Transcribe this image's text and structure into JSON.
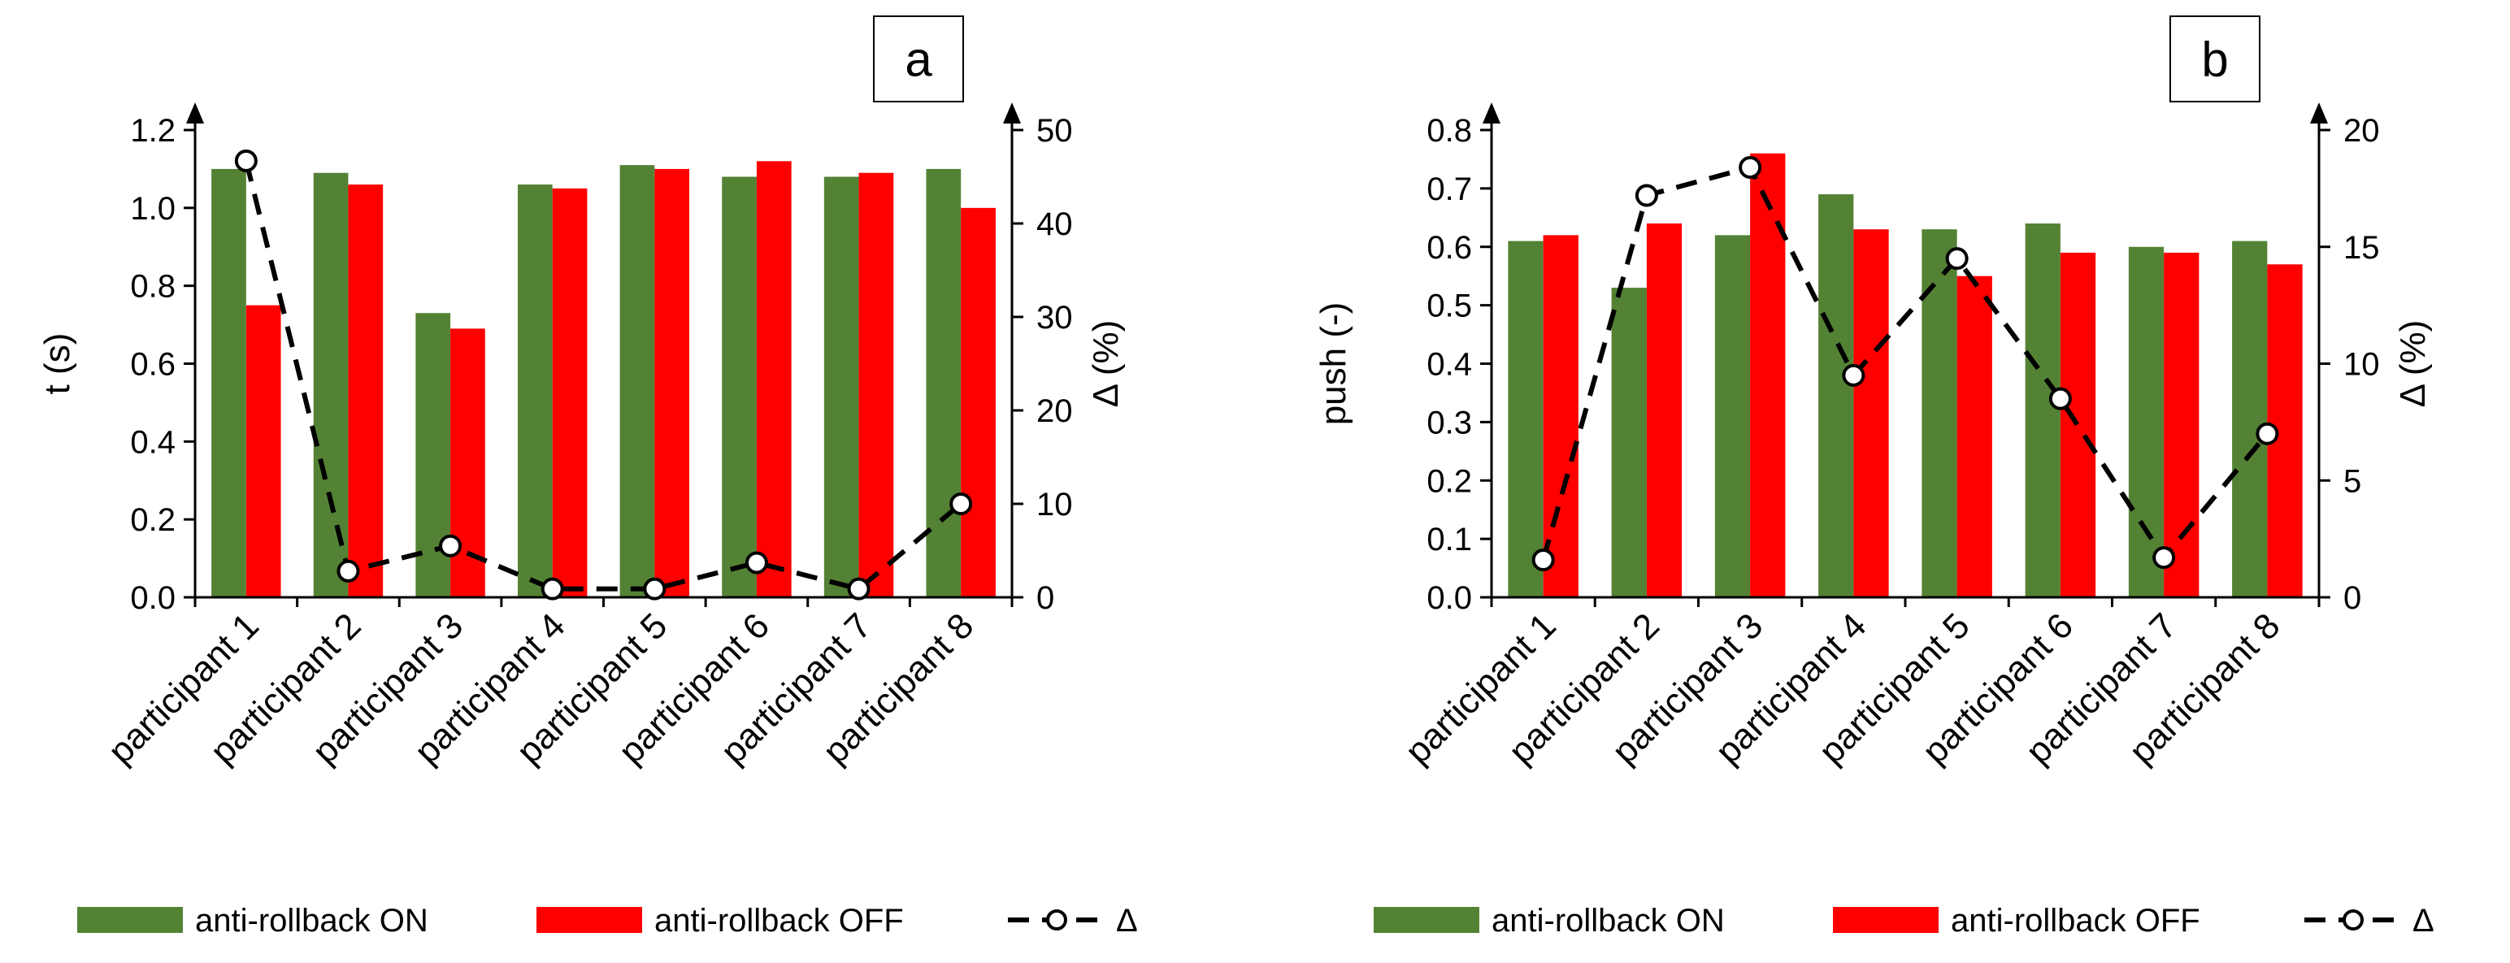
{
  "colors": {
    "on": "#548235",
    "off": "#ff0000",
    "delta": "#000000"
  },
  "chart_data": [
    {
      "type": "bar",
      "panel_label": "a",
      "categories": [
        "participant 1",
        "participant 2",
        "participant 3",
        "participant 4",
        "participant 5",
        "participant 6",
        "participant 7",
        "participant 8"
      ],
      "series": [
        {
          "name": "anti-rollback ON",
          "values": [
            1.1,
            1.09,
            0.73,
            1.06,
            1.11,
            1.08,
            1.08,
            1.1
          ]
        },
        {
          "name": "anti-rollback OFF",
          "values": [
            0.75,
            1.06,
            0.69,
            1.05,
            1.1,
            1.12,
            1.09,
            1.0
          ]
        }
      ],
      "line_series": {
        "name": "Δ",
        "axis": "right",
        "values": [
          46.7,
          2.8,
          5.5,
          0.9,
          0.9,
          3.7,
          0.9,
          10.0
        ]
      },
      "xlabel": "",
      "ylabel": "t (s)",
      "ylim": [
        0,
        1.2
      ],
      "yticks": [
        "0.0",
        "0.2",
        "0.4",
        "0.6",
        "0.8",
        "1.0",
        "1.2"
      ],
      "y2label": "Δ (%)",
      "y2lim": [
        0,
        50
      ],
      "y2ticks": [
        "0",
        "10",
        "20",
        "30",
        "40",
        "50"
      ],
      "legend": {
        "on": "anti-rollback ON",
        "off": "anti-rollback OFF",
        "delta": "Δ"
      }
    },
    {
      "type": "bar",
      "panel_label": "b",
      "categories": [
        "participant 1",
        "participant 2",
        "participant 3",
        "participant 4",
        "participant 5",
        "participant 6",
        "participant 7",
        "participant 8"
      ],
      "series": [
        {
          "name": "anti-rollback ON",
          "values": [
            0.61,
            0.53,
            0.62,
            0.69,
            0.63,
            0.64,
            0.6,
            0.61
          ]
        },
        {
          "name": "anti-rollback OFF",
          "values": [
            0.62,
            0.64,
            0.76,
            0.63,
            0.55,
            0.59,
            0.59,
            0.57
          ]
        }
      ],
      "line_series": {
        "name": "Δ",
        "axis": "right",
        "values": [
          1.6,
          17.2,
          18.4,
          9.5,
          14.5,
          8.5,
          1.7,
          7.0
        ]
      },
      "xlabel": "",
      "ylabel": "push (-)",
      "ylim": [
        0,
        0.8
      ],
      "yticks": [
        "0.0",
        "0.1",
        "0.2",
        "0.3",
        "0.4",
        "0.5",
        "0.6",
        "0.7",
        "0.8"
      ],
      "y2label": "Δ (%)",
      "y2lim": [
        0,
        20
      ],
      "y2ticks": [
        "0",
        "5",
        "10",
        "15",
        "20"
      ],
      "legend": {
        "on": "anti-rollback ON",
        "off": "anti-rollback OFF",
        "delta": "Δ"
      }
    }
  ]
}
